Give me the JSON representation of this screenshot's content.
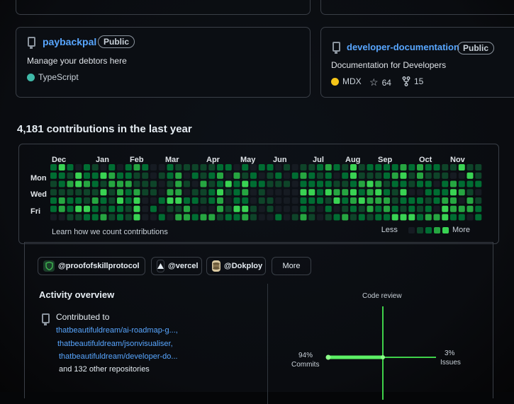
{
  "repos": [
    {
      "name": "paybackpal",
      "visibility": "Public",
      "description": "Manage your debtors here",
      "language": "TypeScript",
      "language_color": "#3fb9a8"
    },
    {
      "name": "developer-documentation",
      "visibility": "Public",
      "description": "Documentation for Developers",
      "language": "MDX",
      "language_color": "#f5c518",
      "stars": "64",
      "forks": "15"
    }
  ],
  "contributions": {
    "heading": "4,181 contributions in the last year",
    "months": [
      "Dec",
      "Jan",
      "Feb",
      "Mar",
      "Apr",
      "May",
      "Jun",
      "Jul",
      "Aug",
      "Sep",
      "Oct",
      "Nov"
    ],
    "days": [
      "Mon",
      "Wed",
      "Fri"
    ],
    "learn_link": "Learn how we count contributions",
    "legend_less": "Less",
    "legend_more": "More",
    "colors": [
      "#161b22",
      "#0e4429",
      "#006d32",
      "#26a641",
      "#39d353"
    ]
  },
  "orgs": [
    {
      "label": "@proofofskillprotocol",
      "icon": "shield-icon"
    },
    {
      "label": "@vercel",
      "icon": "triangle-icon"
    },
    {
      "label": "@Dokploy",
      "icon": "dokploy-logo-icon"
    }
  ],
  "more_button": "More",
  "activity": {
    "title": "Activity overview",
    "contributed_to": "Contributed to",
    "repos": [
      "thatbeautifuldream/ai-roadmap-g...,",
      "thatbeautifuldream/jsonvisualiser,",
      "thatbeautifuldream/developer-do..."
    ],
    "others": "and 132 other repositories",
    "chart": {
      "code_review_label": "Code review",
      "commits_pct": "94%",
      "commits_label": "Commits",
      "issues_pct": "3%",
      "issues_label": "Issues"
    }
  }
}
